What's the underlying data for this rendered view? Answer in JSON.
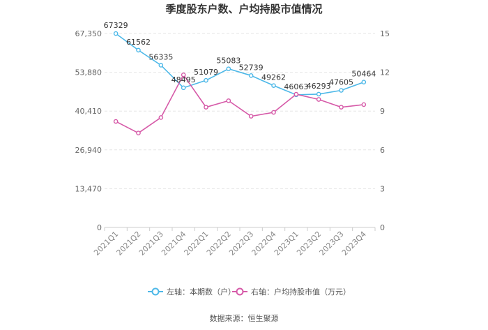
{
  "chart_data": {
    "type": "line",
    "title": "季度股东户数、户均持股市值情况",
    "categories": [
      "2021Q1",
      "2021Q2",
      "2021Q3",
      "2021Q4",
      "2022Q1",
      "2022Q2",
      "2022Q3",
      "2022Q4",
      "2023Q1",
      "2023Q2",
      "2023Q3",
      "2023Q4"
    ],
    "y_left": {
      "ticks": [
        "0",
        "13,470",
        "26,940",
        "40,410",
        "53,880",
        "67,350"
      ],
      "min": 0,
      "max": 67350
    },
    "y_right": {
      "ticks": [
        "0",
        "3",
        "6",
        "9",
        "12",
        "15"
      ],
      "min": 0,
      "max": 15
    },
    "series": [
      {
        "name": "左轴：本期数（户）",
        "axis": "left",
        "color": "#4db8e8",
        "values": [
          67329,
          61562,
          56335,
          48495,
          51079,
          55083,
          52739,
          49262,
          46063,
          46293,
          47605,
          50464
        ],
        "labels": [
          "67329",
          "61562",
          "56335",
          "48495",
          "51079",
          "55083",
          "52739",
          "49262",
          "46063",
          "46293",
          "47605",
          "50464"
        ]
      },
      {
        "name": "右轴：户均持股市值（万元）",
        "axis": "right",
        "color": "#d65aa8",
        "values": [
          8.2,
          7.3,
          8.5,
          11.8,
          9.3,
          9.8,
          8.6,
          8.9,
          10.3,
          9.9,
          9.3,
          9.5
        ]
      }
    ],
    "grid": true,
    "legend_position": "bottom"
  },
  "source": "数据来源：恒生聚源"
}
